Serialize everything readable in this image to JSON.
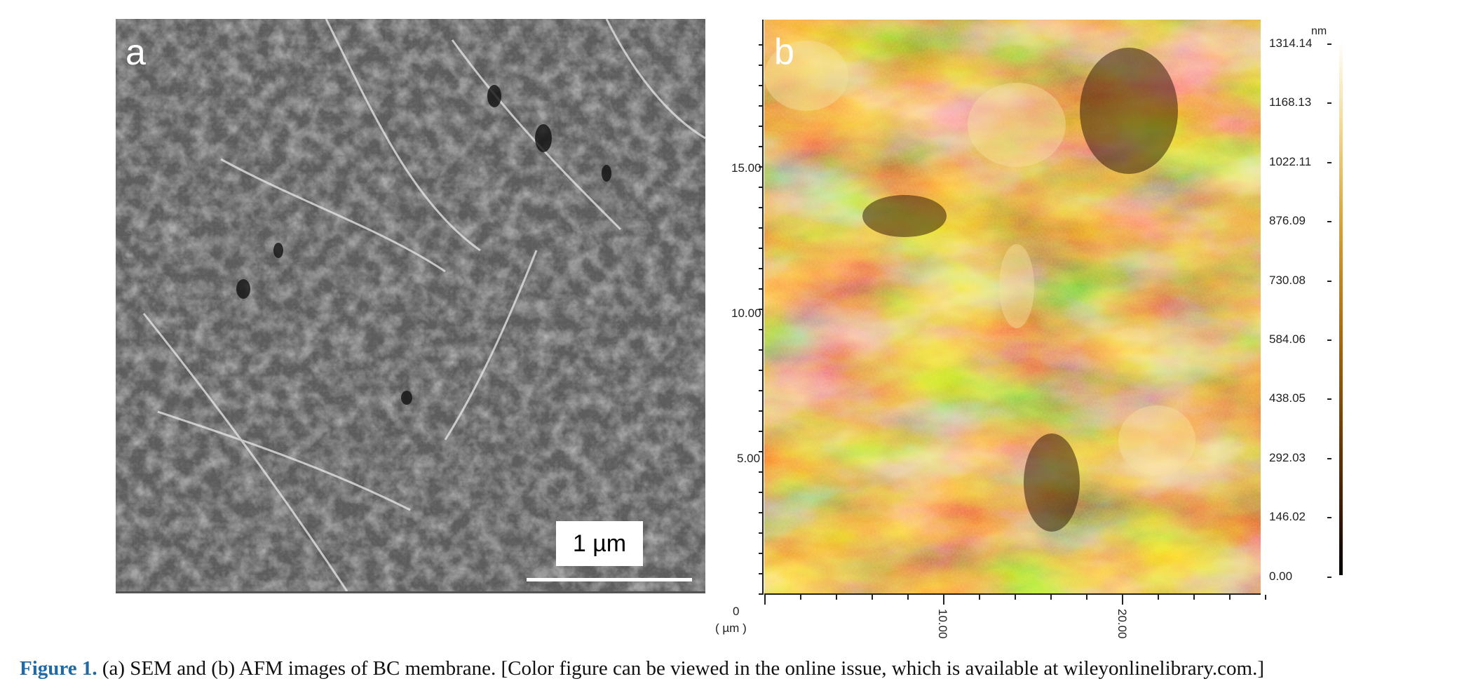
{
  "panel_a": {
    "letter": "a",
    "scale_bar_label": "1 µm"
  },
  "panel_b": {
    "letter": "b",
    "y_axis_ticks": [
      "15.00",
      "10.00",
      "5.00"
    ],
    "origin_label": "0",
    "unit_label": "( µm )",
    "x_axis_ticks": [
      "10.00",
      "20.00"
    ],
    "colorbar": {
      "unit": "nm",
      "labels": [
        "1314.14",
        "1168.13",
        "1022.11",
        "876.09",
        "730.08",
        "584.06",
        "438.05",
        "292.03",
        "146.02",
        "0.00"
      ]
    }
  },
  "caption": {
    "figure_label": "Figure 1.",
    "text": " (a) SEM and (b) AFM images of BC membrane. [Color figure can be viewed in the online issue, which is available at wileyonlinelibrary.com.]"
  },
  "colors": {
    "caption_accent": "#1f6aa5",
    "afm_dark": "#3a1a00",
    "afm_light": "#f5dc9a"
  }
}
